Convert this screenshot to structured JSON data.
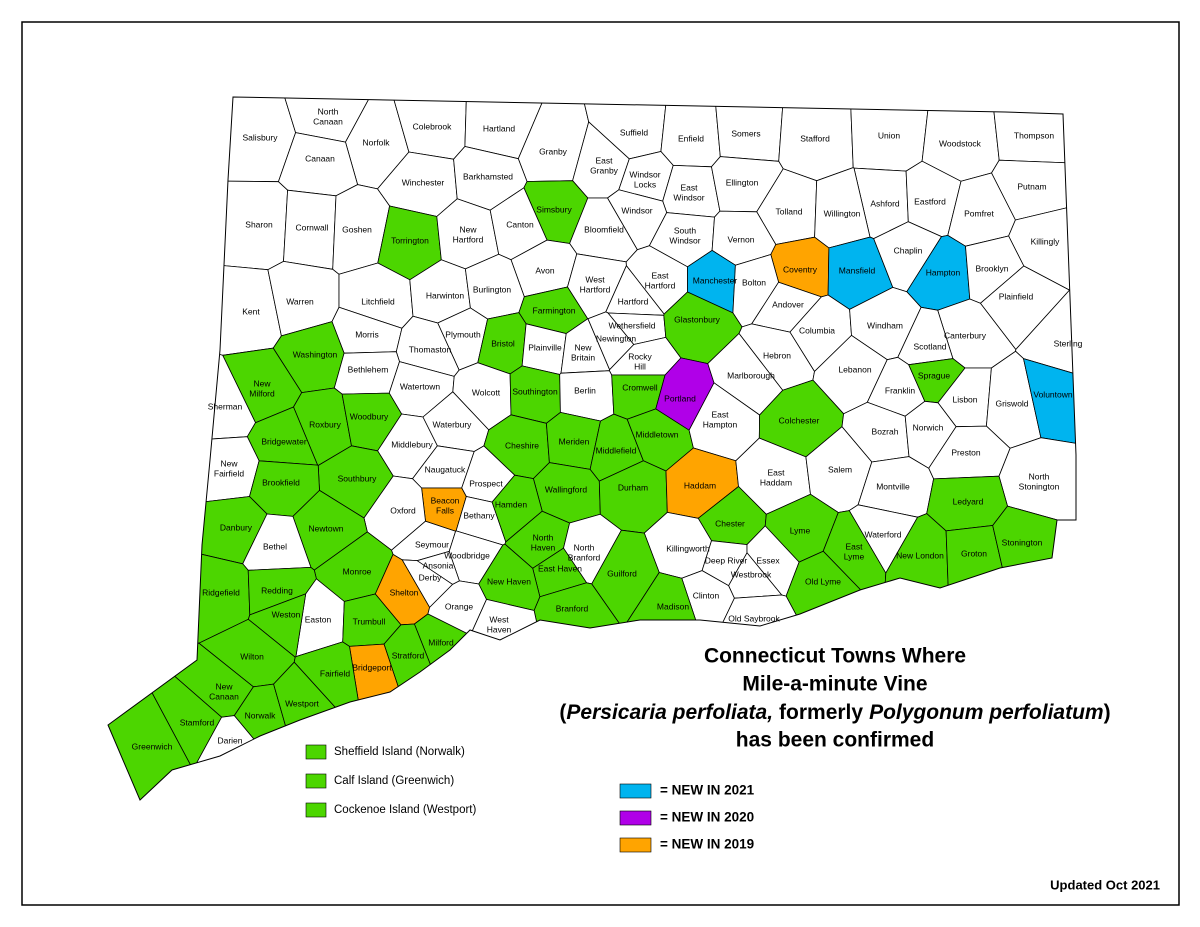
{
  "title": {
    "line1": "Connecticut Towns Where",
    "line2": "Mile-a-minute Vine",
    "line3": [
      "(",
      "Persicaria perfoliata,",
      "formerly",
      "Polygonum perfoliatum",
      ")"
    ],
    "line4": "has been confirmed"
  },
  "updated": "Updated Oct 2021",
  "islands": [
    {
      "label": "Sheffield Island (Norwalk)",
      "color": "#4cd600"
    },
    {
      "label": "Calf Island (Greenwich)",
      "color": "#4cd600"
    },
    {
      "label": "Cockenoe Island (Westport)",
      "color": "#4cd600"
    }
  ],
  "legend": [
    {
      "label": "= NEW IN 2021",
      "color": "#00b4ef"
    },
    {
      "label": "= NEW IN 2020",
      "color": "#b000e8"
    },
    {
      "label": "= NEW IN 2019",
      "color": "#ffa400"
    }
  ],
  "towns": [
    {
      "label": [
        "Salisbury"
      ],
      "color": "#ffffff"
    },
    {
      "label": [
        "North",
        "Canaan"
      ],
      "color": "#ffffff"
    },
    {
      "label": [
        "Norfolk"
      ],
      "color": "#ffffff"
    },
    {
      "label": [
        "Colebrook"
      ],
      "color": "#ffffff"
    },
    {
      "label": [
        "Hartland"
      ],
      "color": "#ffffff"
    },
    {
      "label": [
        "Granby"
      ],
      "color": "#ffffff"
    },
    {
      "label": [
        "Suffield"
      ],
      "color": "#ffffff"
    },
    {
      "label": [
        "Enfield"
      ],
      "color": "#ffffff"
    },
    {
      "label": [
        "Somers"
      ],
      "color": "#ffffff"
    },
    {
      "label": [
        "Stafford"
      ],
      "color": "#ffffff"
    },
    {
      "label": [
        "Union"
      ],
      "color": "#ffffff"
    },
    {
      "label": [
        "Woodstock"
      ],
      "color": "#ffffff"
    },
    {
      "label": [
        "Thompson"
      ],
      "color": "#ffffff"
    },
    {
      "label": [
        "Canaan"
      ],
      "color": "#ffffff"
    },
    {
      "label": [
        "East",
        "Granby"
      ],
      "color": "#ffffff"
    },
    {
      "label": [
        "Windsor",
        "Locks"
      ],
      "color": "#ffffff"
    },
    {
      "label": [
        "Winchester"
      ],
      "color": "#ffffff"
    },
    {
      "label": [
        "Barkhamsted"
      ],
      "color": "#ffffff"
    },
    {
      "label": [
        "East",
        "Windsor"
      ],
      "color": "#ffffff"
    },
    {
      "label": [
        "Ellington"
      ],
      "color": "#ffffff"
    },
    {
      "label": [
        "Putnam"
      ],
      "color": "#ffffff"
    },
    {
      "label": [
        "Ashford"
      ],
      "color": "#ffffff"
    },
    {
      "label": [
        "Eastford"
      ],
      "color": "#ffffff"
    },
    {
      "label": [
        "Simsbury"
      ],
      "color": "#4cd600"
    },
    {
      "label": [
        "Windsor"
      ],
      "color": "#ffffff"
    },
    {
      "label": [
        "Tolland"
      ],
      "color": "#ffffff"
    },
    {
      "label": [
        "Willington"
      ],
      "color": "#ffffff"
    },
    {
      "label": [
        "Pomfret"
      ],
      "color": "#ffffff"
    },
    {
      "label": [
        "Sharon"
      ],
      "color": "#ffffff"
    },
    {
      "label": [
        "Cornwall"
      ],
      "color": "#ffffff"
    },
    {
      "label": [
        "Goshen"
      ],
      "color": "#ffffff"
    },
    {
      "label": [
        "Torrington"
      ],
      "color": "#4cd600"
    },
    {
      "label": [
        "New",
        "Hartford"
      ],
      "color": "#ffffff"
    },
    {
      "label": [
        "Canton"
      ],
      "color": "#ffffff"
    },
    {
      "label": [
        "Bloomfield"
      ],
      "color": "#ffffff"
    },
    {
      "label": [
        "South",
        "Windsor"
      ],
      "color": "#ffffff"
    },
    {
      "label": [
        "Vernon"
      ],
      "color": "#ffffff"
    },
    {
      "label": [
        "Killingly"
      ],
      "color": "#ffffff"
    },
    {
      "label": [
        "Coventry"
      ],
      "color": "#ffa400"
    },
    {
      "label": [
        "Mansfield"
      ],
      "color": "#00b4ef"
    },
    {
      "label": [
        "Chaplin"
      ],
      "color": "#ffffff"
    },
    {
      "label": [
        "Hampton"
      ],
      "color": "#00b4ef"
    },
    {
      "label": [
        "Brooklyn"
      ],
      "color": "#ffffff"
    },
    {
      "label": [
        "Avon"
      ],
      "color": "#ffffff"
    },
    {
      "label": [
        "West",
        "Hartford"
      ],
      "color": "#ffffff"
    },
    {
      "label": [
        "East",
        "Hartford"
      ],
      "color": "#ffffff"
    },
    {
      "label": [
        "Manchester"
      ],
      "color": "#00b4ef"
    },
    {
      "label": [
        "Bolton"
      ],
      "color": "#ffffff"
    },
    {
      "label": [
        "Kent"
      ],
      "color": "#ffffff"
    },
    {
      "label": [
        "Warren"
      ],
      "color": "#ffffff"
    },
    {
      "label": [
        "Litchfield"
      ],
      "color": "#ffffff"
    },
    {
      "label": [
        "Harwinton"
      ],
      "color": "#ffffff"
    },
    {
      "label": [
        "Burlington"
      ],
      "color": "#ffffff"
    },
    {
      "label": [
        "Farmington"
      ],
      "color": "#4cd600"
    },
    {
      "label": [
        "Hartford"
      ],
      "color": "#ffffff"
    },
    {
      "label": [
        "Andover"
      ],
      "color": "#ffffff"
    },
    {
      "label": [
        "Columbia"
      ],
      "color": "#ffffff"
    },
    {
      "label": [
        "Windham"
      ],
      "color": "#ffffff"
    },
    {
      "label": [
        "Plainfield"
      ],
      "color": "#ffffff"
    },
    {
      "label": [
        "Canterbury"
      ],
      "color": "#ffffff"
    },
    {
      "label": [
        "Sterling"
      ],
      "color": "#ffffff"
    },
    {
      "label": [
        "Morris"
      ],
      "color": "#ffffff"
    },
    {
      "label": [
        "Plymouth"
      ],
      "color": "#ffffff"
    },
    {
      "label": [
        "Bristol"
      ],
      "color": "#4cd600"
    },
    {
      "label": [
        "Plainville"
      ],
      "color": "#ffffff"
    },
    {
      "label": [
        "New",
        "Britain"
      ],
      "color": "#ffffff"
    },
    {
      "label": [
        "Newington"
      ],
      "color": "#ffffff"
    },
    {
      "label": [
        "Wethersfield"
      ],
      "color": "#ffffff"
    },
    {
      "label": [
        "Rocky",
        "Hill"
      ],
      "color": "#ffffff"
    },
    {
      "label": [
        "Glastonbury"
      ],
      "color": "#4cd600"
    },
    {
      "label": [
        "Hebron"
      ],
      "color": "#ffffff"
    },
    {
      "label": [
        "Scotland"
      ],
      "color": "#ffffff"
    },
    {
      "label": [
        "Thomaston"
      ],
      "color": "#ffffff"
    },
    {
      "label": [
        "Washington"
      ],
      "color": "#4cd600"
    },
    {
      "label": [
        "Bethlehem"
      ],
      "color": "#ffffff"
    },
    {
      "label": [
        "New",
        "Milford"
      ],
      "color": "#4cd600"
    },
    {
      "label": [
        "Watertown"
      ],
      "color": "#ffffff"
    },
    {
      "label": [
        "Wolcott"
      ],
      "color": "#ffffff"
    },
    {
      "label": [
        "Southington"
      ],
      "color": "#4cd600"
    },
    {
      "label": [
        "Berlin"
      ],
      "color": "#ffffff"
    },
    {
      "label": [
        "Cromwell"
      ],
      "color": "#4cd600"
    },
    {
      "label": [
        "Portland"
      ],
      "color": "#b000e8"
    },
    {
      "label": [
        "Marlborough"
      ],
      "color": "#ffffff"
    },
    {
      "label": [
        "Lebanon"
      ],
      "color": "#ffffff"
    },
    {
      "label": [
        "Franklin"
      ],
      "color": "#ffffff"
    },
    {
      "label": [
        "Sprague"
      ],
      "color": "#4cd600"
    },
    {
      "label": [
        "Lisbon"
      ],
      "color": "#ffffff"
    },
    {
      "label": [
        "Griswold"
      ],
      "color": "#ffffff"
    },
    {
      "label": [
        "Voluntown"
      ],
      "color": "#00b4ef"
    },
    {
      "label": [
        "Sherman"
      ],
      "color": "#ffffff"
    },
    {
      "label": [
        "Roxbury"
      ],
      "color": "#4cd600"
    },
    {
      "label": [
        "Woodbury"
      ],
      "color": "#4cd600"
    },
    {
      "label": [
        "Middlebury"
      ],
      "color": "#ffffff"
    },
    {
      "label": [
        "Waterbury"
      ],
      "color": "#ffffff"
    },
    {
      "label": [
        "Cheshire"
      ],
      "color": "#4cd600"
    },
    {
      "label": [
        "Meriden"
      ],
      "color": "#4cd600"
    },
    {
      "label": [
        "Middlefield"
      ],
      "color": "#4cd600"
    },
    {
      "label": [
        "Middletown"
      ],
      "color": "#4cd600"
    },
    {
      "label": [
        "East",
        "Hampton"
      ],
      "color": "#ffffff"
    },
    {
      "label": [
        "Colchester"
      ],
      "color": "#4cd600"
    },
    {
      "label": [
        "Bozrah"
      ],
      "color": "#ffffff"
    },
    {
      "label": [
        "Norwich"
      ],
      "color": "#ffffff"
    },
    {
      "label": [
        "Preston"
      ],
      "color": "#ffffff"
    },
    {
      "label": [
        "Bridgewater"
      ],
      "color": "#4cd600"
    },
    {
      "label": [
        "New",
        "Fairfield"
      ],
      "color": "#ffffff"
    },
    {
      "label": [
        "Naugatuck"
      ],
      "color": "#ffffff"
    },
    {
      "label": [
        "Prospect"
      ],
      "color": "#ffffff"
    },
    {
      "label": [
        "Southbury"
      ],
      "color": "#4cd600"
    },
    {
      "label": [
        "Brookfield"
      ],
      "color": "#4cd600"
    },
    {
      "label": [
        "Wallingford"
      ],
      "color": "#4cd600"
    },
    {
      "label": [
        "Durham"
      ],
      "color": "#4cd600"
    },
    {
      "label": [
        "Haddam"
      ],
      "color": "#ffa400"
    },
    {
      "label": [
        "East",
        "Haddam"
      ],
      "color": "#ffffff"
    },
    {
      "label": [
        "Salem"
      ],
      "color": "#ffffff"
    },
    {
      "label": [
        "Montville"
      ],
      "color": "#ffffff"
    },
    {
      "label": [
        "North",
        "Stonington"
      ],
      "color": "#ffffff"
    },
    {
      "label": [
        "Ledyard"
      ],
      "color": "#4cd600"
    },
    {
      "label": [
        "Beacon",
        "Falls"
      ],
      "color": "#ffa400"
    },
    {
      "label": [
        "Oxford"
      ],
      "color": "#ffffff"
    },
    {
      "label": [
        "Bethany"
      ],
      "color": "#ffffff"
    },
    {
      "label": [
        "Hamden"
      ],
      "color": "#4cd600"
    },
    {
      "label": [
        "Danbury"
      ],
      "color": "#4cd600"
    },
    {
      "label": [
        "Newtown"
      ],
      "color": "#4cd600"
    },
    {
      "label": [
        "Chester"
      ],
      "color": "#4cd600"
    },
    {
      "label": [
        "Lyme"
      ],
      "color": "#4cd600"
    },
    {
      "label": [
        "Waterford"
      ],
      "color": "#ffffff"
    },
    {
      "label": [
        "Bethel"
      ],
      "color": "#ffffff"
    },
    {
      "label": [
        "Seymour"
      ],
      "color": "#ffffff"
    },
    {
      "label": [
        "North",
        "Haven"
      ],
      "color": "#4cd600"
    },
    {
      "label": [
        "North",
        "Branford"
      ],
      "color": "#ffffff"
    },
    {
      "label": [
        "Killingworth"
      ],
      "color": "#ffffff"
    },
    {
      "label": [
        "East",
        "Lyme"
      ],
      "color": "#4cd600"
    },
    {
      "label": [
        "New London"
      ],
      "color": "#4cd600"
    },
    {
      "label": [
        "Groton"
      ],
      "color": "#4cd600"
    },
    {
      "label": [
        "Stonington"
      ],
      "color": "#4cd600"
    },
    {
      "label": [
        "Woodbridge"
      ],
      "color": "#ffffff"
    },
    {
      "label": [
        "Ansonia"
      ],
      "color": "#ffffff"
    },
    {
      "label": [
        "Derby"
      ],
      "color": "#ffffff"
    },
    {
      "label": [
        "Monroe"
      ],
      "color": "#4cd600"
    },
    {
      "label": [
        "Deep River"
      ],
      "color": "#ffffff"
    },
    {
      "label": [
        "Essex"
      ],
      "color": "#ffffff"
    },
    {
      "label": [
        "East Haven"
      ],
      "color": "#4cd600"
    },
    {
      "label": [
        "Westbrook"
      ],
      "color": "#ffffff"
    },
    {
      "label": [
        "Old Lyme"
      ],
      "color": "#4cd600"
    },
    {
      "label": [
        "Ridgefield"
      ],
      "color": "#4cd600"
    },
    {
      "label": [
        "Redding"
      ],
      "color": "#4cd600"
    },
    {
      "label": [
        "Shelton"
      ],
      "color": "#ffa400"
    },
    {
      "label": [
        "New Haven"
      ],
      "color": "#4cd600"
    },
    {
      "label": [
        "Guilford"
      ],
      "color": "#4cd600"
    },
    {
      "label": [
        "Clinton"
      ],
      "color": "#ffffff"
    },
    {
      "label": [
        "Orange"
      ],
      "color": "#ffffff"
    },
    {
      "label": [
        "Branford"
      ],
      "color": "#4cd600"
    },
    {
      "label": [
        "Madison"
      ],
      "color": "#4cd600"
    },
    {
      "label": [
        "Easton"
      ],
      "color": "#ffffff"
    },
    {
      "label": [
        "Trumbull"
      ],
      "color": "#4cd600"
    },
    {
      "label": [
        "West",
        "Haven"
      ],
      "color": "#ffffff"
    },
    {
      "label": [
        "Old Saybrook"
      ],
      "color": "#ffffff"
    },
    {
      "label": [
        "Weston"
      ],
      "color": "#4cd600"
    },
    {
      "label": [
        "Milford"
      ],
      "color": "#4cd600"
    },
    {
      "label": [
        "Wilton"
      ],
      "color": "#4cd600"
    },
    {
      "label": [
        "Stratford"
      ],
      "color": "#4cd600"
    },
    {
      "label": [
        "Bridgeport"
      ],
      "color": "#ffa400"
    },
    {
      "label": [
        "Fairfield"
      ],
      "color": "#4cd600"
    },
    {
      "label": [
        "New",
        "Canaan"
      ],
      "color": "#4cd600"
    },
    {
      "label": [
        "Norwalk"
      ],
      "color": "#4cd600"
    },
    {
      "label": [
        "Westport"
      ],
      "color": "#4cd600"
    },
    {
      "label": [
        "Stamford"
      ],
      "color": "#4cd600"
    },
    {
      "label": [
        "Darien"
      ],
      "color": "#ffffff"
    },
    {
      "label": [
        "Greenwich"
      ],
      "color": "#4cd600"
    }
  ]
}
